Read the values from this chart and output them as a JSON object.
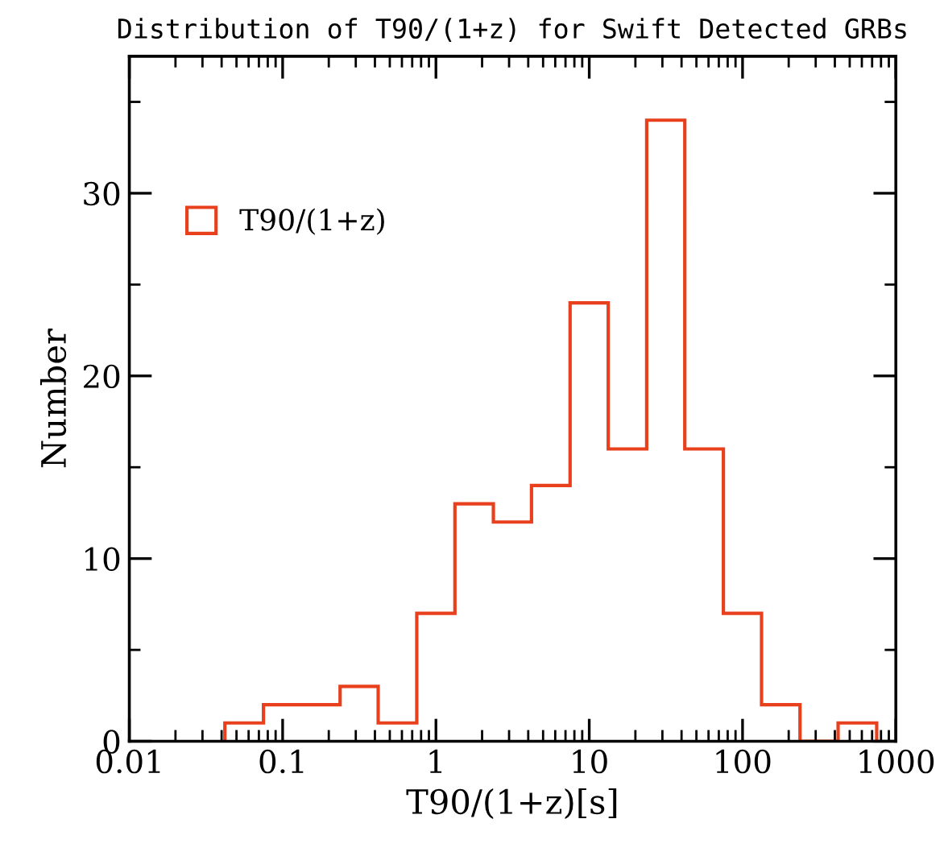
{
  "chart_data": {
    "type": "histogram",
    "title": "Distribution of T90/(1+z) for Swift Detected GRBs",
    "xlabel": "T90/(1+z)[s]",
    "ylabel": "Number",
    "bins": [
      0.042,
      0.075,
      0.133,
      0.237,
      0.42,
      0.75,
      1.33,
      2.37,
      4.2,
      7.5,
      13.3,
      23.7,
      42,
      75,
      133,
      237,
      420,
      750
    ],
    "series": [
      {
        "name": "T90/(1+z)",
        "color": "#e8401c",
        "values": [
          1,
          2,
          2,
          3,
          1,
          7,
          13,
          12,
          14,
          24,
          16,
          34,
          16,
          7,
          2,
          0,
          1
        ]
      }
    ],
    "log": "x",
    "xlim": [
      0.01,
      1000
    ],
    "xticks": [
      0.01,
      0.1,
      1,
      10,
      100,
      1000
    ],
    "ylim": [
      0,
      37.5
    ],
    "yticks": [
      0,
      10,
      20,
      30
    ],
    "grid": false,
    "legend": "top left"
  }
}
